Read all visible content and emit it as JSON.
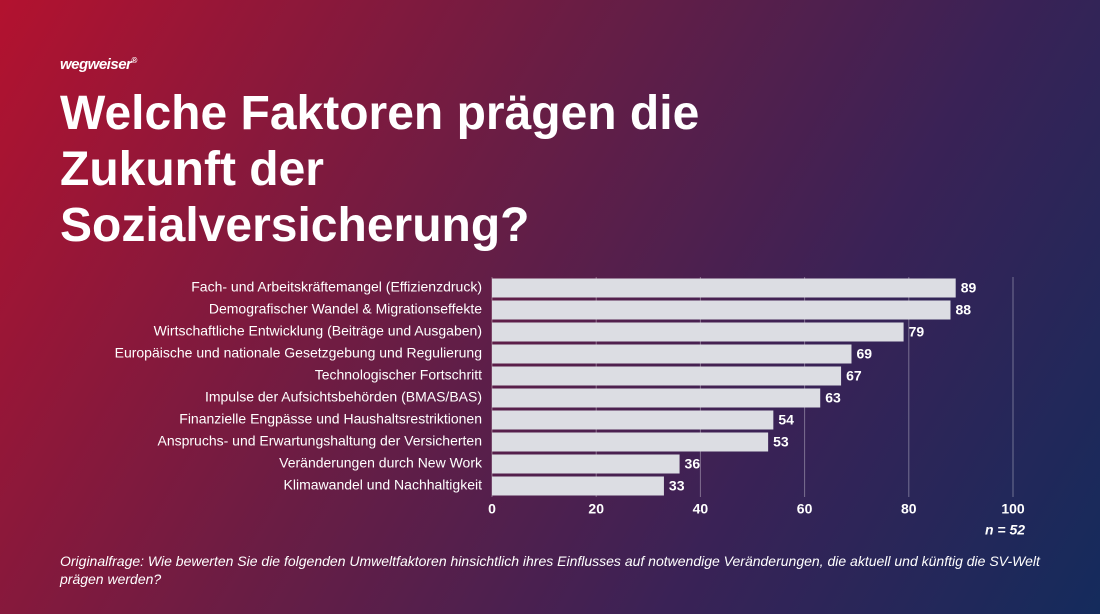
{
  "logo": {
    "name": "wegweiser",
    "mark": "®"
  },
  "chart_data": {
    "type": "bar",
    "orientation": "horizontal",
    "title": "Welche Faktoren prägen die Zukunft der Sozialversicherung?",
    "categories": [
      "Fach- und Arbeitskräftemangel (Effizienzdruck)",
      "Demografischer Wandel & Migrationseffekte",
      "Wirtschaftliche Entwicklung (Beiträge und Ausgaben)",
      "Europäische und nationale Gesetzgebung und Regulierung",
      "Technologischer Fortschritt",
      "Impulse der Aufsichtsbehörden (BMAS/BAS)",
      "Finanzielle Engpässe und Haushaltsrestriktionen",
      "Anspruchs- und Erwartungshaltung der Versicherten",
      "Veränderungen durch New Work",
      "Klimawandel und Nachhaltigkeit"
    ],
    "values": [
      89,
      88,
      79,
      69,
      67,
      63,
      54,
      53,
      36,
      33
    ],
    "color": "#dcdde3",
    "xlim": [
      0,
      100
    ],
    "xticks": [
      0,
      20,
      40,
      60,
      80,
      100
    ],
    "grid": true,
    "sample_note": "n = 52"
  },
  "footnote": "Originalfrage: Wie bewerten Sie die folgenden Umweltfaktoren hinsichtlich ihres Einflusses auf notwendige Veränderungen, die aktuell und künftig die SV-Welt prägen werden?"
}
